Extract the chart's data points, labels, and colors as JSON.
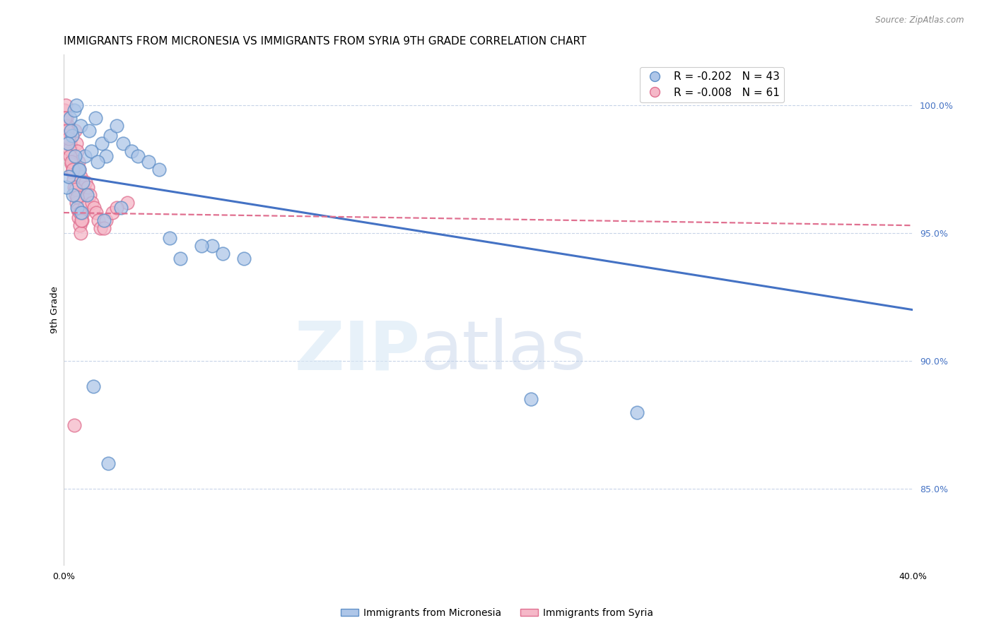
{
  "title": "IMMIGRANTS FROM MICRONESIA VS IMMIGRANTS FROM SYRIA 9TH GRADE CORRELATION CHART",
  "source": "Source: ZipAtlas.com",
  "ylabel": "9th Grade",
  "xlim": [
    0.0,
    40.0
  ],
  "ylim": [
    82.0,
    102.0
  ],
  "yticks_right": [
    85.0,
    90.0,
    95.0,
    100.0
  ],
  "legend_R1": "R = -0.202",
  "legend_N1": "N = 43",
  "legend_R2": "R = -0.008",
  "legend_N2": "N = 61",
  "micronesia_color": "#aec6e8",
  "syria_color": "#f5b8c8",
  "micronesia_edge": "#6090c8",
  "syria_edge": "#e07090",
  "micronesia_line_color": "#4472c4",
  "syria_line_color": "#e07090",
  "watermark_zip": "ZIP",
  "watermark_atlas": "atlas",
  "background_color": "#ffffff",
  "grid_color": "#c8d4e8",
  "title_fontsize": 11,
  "axis_label_fontsize": 9.5,
  "tick_fontsize": 9,
  "micronesia_x": [
    0.3,
    0.5,
    0.4,
    0.6,
    0.8,
    0.2,
    0.7,
    1.0,
    0.9,
    1.2,
    1.5,
    1.8,
    2.0,
    2.2,
    2.5,
    1.3,
    1.6,
    0.35,
    0.55,
    0.75,
    2.8,
    3.2,
    3.5,
    4.0,
    4.5,
    5.5,
    7.0,
    7.5,
    8.5,
    0.45,
    0.65,
    0.85,
    0.15,
    0.25,
    22.0,
    1.1,
    1.9,
    2.7,
    6.5,
    5.0,
    1.4,
    27.0,
    2.1
  ],
  "micronesia_y": [
    99.5,
    99.8,
    98.8,
    100.0,
    99.2,
    98.5,
    97.5,
    98.0,
    97.0,
    99.0,
    99.5,
    98.5,
    98.0,
    98.8,
    99.2,
    98.2,
    97.8,
    99.0,
    98.0,
    97.5,
    98.5,
    98.2,
    98.0,
    97.8,
    97.5,
    94.0,
    94.5,
    94.2,
    94.0,
    96.5,
    96.0,
    95.8,
    96.8,
    97.2,
    88.5,
    96.5,
    95.5,
    96.0,
    94.5,
    94.8,
    89.0,
    88.0,
    86.0
  ],
  "syria_x": [
    0.05,
    0.1,
    0.15,
    0.2,
    0.25,
    0.3,
    0.35,
    0.4,
    0.45,
    0.5,
    0.55,
    0.6,
    0.65,
    0.7,
    0.75,
    0.8,
    0.85,
    0.9,
    0.95,
    1.0,
    0.12,
    0.18,
    0.22,
    0.28,
    0.32,
    0.38,
    0.42,
    0.48,
    0.52,
    0.58,
    0.62,
    0.68,
    0.72,
    0.78,
    0.82,
    0.88,
    0.92,
    0.98,
    1.05,
    1.15,
    1.25,
    1.35,
    1.45,
    1.55,
    1.65,
    1.75,
    2.0,
    2.3,
    3.0,
    0.08,
    0.16,
    0.24,
    0.36,
    0.44,
    0.56,
    0.64,
    0.76,
    0.84,
    0.5,
    2.5,
    1.9
  ],
  "syria_y": [
    99.8,
    100.0,
    99.5,
    99.2,
    98.8,
    98.6,
    98.4,
    98.0,
    97.8,
    97.5,
    99.0,
    98.5,
    98.2,
    97.8,
    97.5,
    97.2,
    96.9,
    96.6,
    96.8,
    96.5,
    99.2,
    98.8,
    98.6,
    98.3,
    98.0,
    97.7,
    97.4,
    97.1,
    96.8,
    96.5,
    96.2,
    95.9,
    95.6,
    95.3,
    95.0,
    95.5,
    95.8,
    96.0,
    97.0,
    96.8,
    96.5,
    96.2,
    96.0,
    95.8,
    95.5,
    95.2,
    95.5,
    95.8,
    96.2,
    99.5,
    99.0,
    98.7,
    97.8,
    97.5,
    96.7,
    96.4,
    95.8,
    95.5,
    87.5,
    96.0,
    95.2
  ],
  "mic_trend_x": [
    0.0,
    40.0
  ],
  "mic_trend_y": [
    97.3,
    92.0
  ],
  "syr_trend_x": [
    0.0,
    40.0
  ],
  "syr_trend_y": [
    95.8,
    95.3
  ]
}
